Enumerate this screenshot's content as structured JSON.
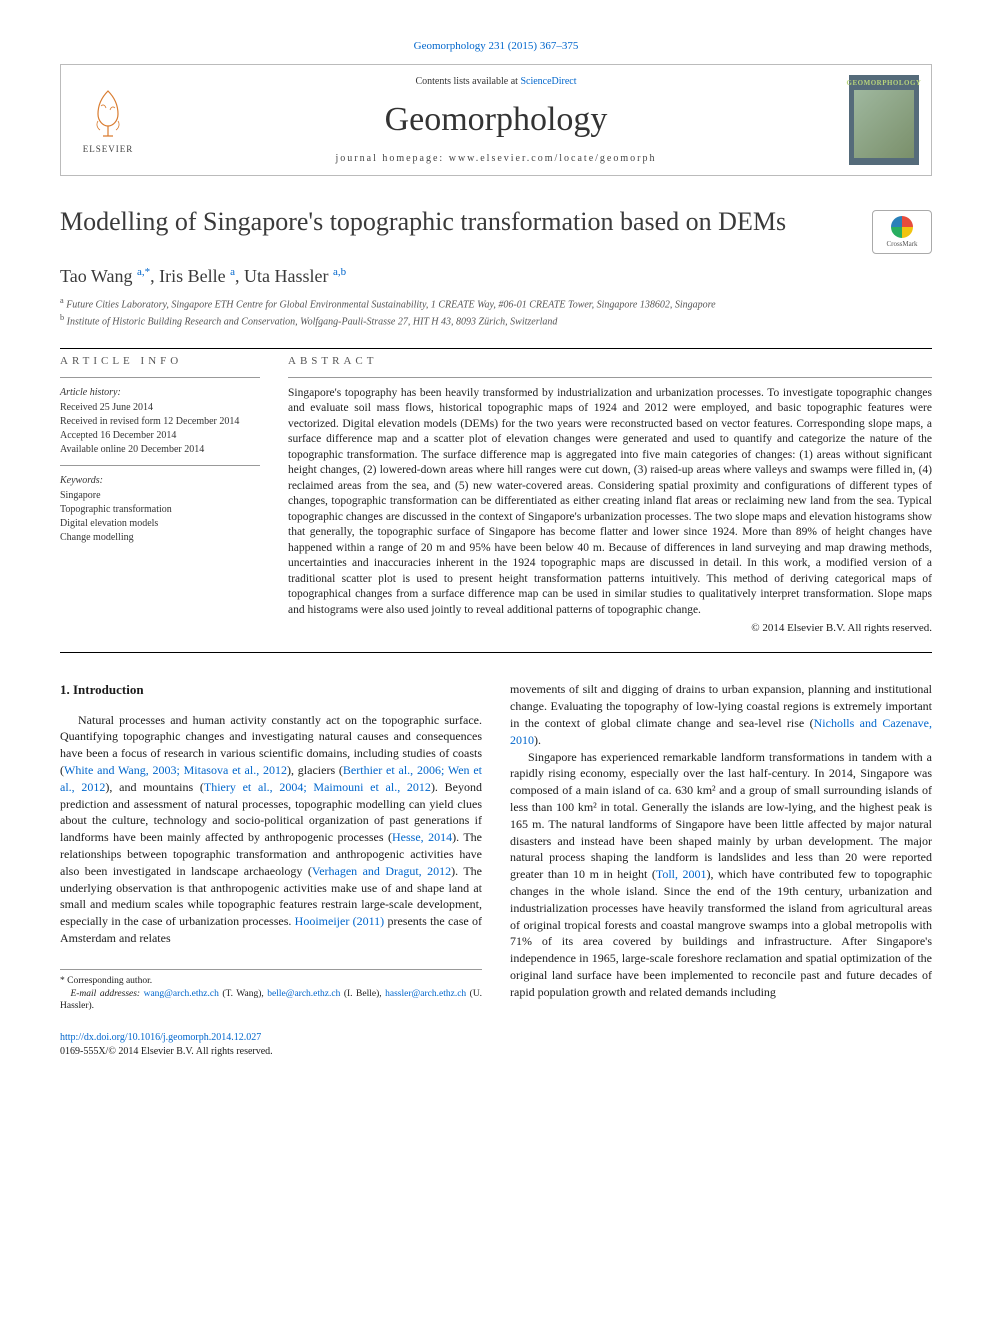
{
  "citation": "Geomorphology 231 (2015) 367–375",
  "masthead": {
    "contents_prefix": "Contents lists available at ",
    "contents_link": "ScienceDirect",
    "journal": "Geomorphology",
    "homepage_prefix": "journal homepage: ",
    "homepage_url": "www.elsevier.com/locate/geomorph",
    "publisher": "ELSEVIER",
    "cover_label": "GEOMORPHOLOGY"
  },
  "crossmark": "CrossMark",
  "title": "Modelling of Singapore's topographic transformation based on DEMs",
  "authors_html": "Tao Wang <sup>a,*</sup>, Iris Belle <sup>a</sup>, Uta Hassler <sup>a,b</sup>",
  "affiliations": {
    "a": "Future Cities Laboratory, Singapore ETH Centre for Global Environmental Sustainability, 1 CREATE Way, #06-01 CREATE Tower, Singapore 138602, Singapore",
    "b": "Institute of Historic Building Research and Conservation, Wolfgang-Pauli-Strasse 27, HIT H 43, 8093 Zürich, Switzerland"
  },
  "article_info": {
    "label": "article info",
    "history_heading": "Article history:",
    "received": "Received 25 June 2014",
    "revised": "Received in revised form 12 December 2014",
    "accepted": "Accepted 16 December 2014",
    "online": "Available online 20 December 2014",
    "keywords_heading": "Keywords:",
    "keywords": [
      "Singapore",
      "Topographic transformation",
      "Digital elevation models",
      "Change modelling"
    ]
  },
  "abstract": {
    "label": "abstract",
    "text": "Singapore's topography has been heavily transformed by industrialization and urbanization processes. To investigate topographic changes and evaluate soil mass flows, historical topographic maps of 1924 and 2012 were employed, and basic topographic features were vectorized. Digital elevation models (DEMs) for the two years were reconstructed based on vector features. Corresponding slope maps, a surface difference map and a scatter plot of elevation changes were generated and used to quantify and categorize the nature of the topographic transformation. The surface difference map is aggregated into five main categories of changes: (1) areas without significant height changes, (2) lowered-down areas where hill ranges were cut down, (3) raised-up areas where valleys and swamps were filled in, (4) reclaimed areas from the sea, and (5) new water-covered areas. Considering spatial proximity and configurations of different types of changes, topographic transformation can be differentiated as either creating inland flat areas or reclaiming new land from the sea. Typical topographic changes are discussed in the context of Singapore's urbanization processes. The two slope maps and elevation histograms show that generally, the topographic surface of Singapore has become flatter and lower since 1924. More than 89% of height changes have happened within a range of 20 m and 95% have been below 40 m. Because of differences in land surveying and map drawing methods, uncertainties and inaccuracies inherent in the 1924 topographic maps are discussed in detail. In this work, a modified version of a traditional scatter plot is used to present height transformation patterns intuitively. This method of deriving categorical maps of topographical changes from a surface difference map can be used in similar studies to qualitatively interpret transformation. Slope maps and histograms were also used jointly to reveal additional patterns of topographic change.",
    "copyright": "© 2014 Elsevier B.V. All rights reserved."
  },
  "body": {
    "section_number": "1.",
    "section_title": "Introduction",
    "left_p1_a": "Natural processes and human activity constantly act on the topographic surface. Quantifying topographic changes and investigating natural causes and consequences have been a focus of research in various scientific domains, including studies of coasts (",
    "cite1": "White and Wang, 2003; Mitasova et al., 2012",
    "left_p1_b": "), glaciers (",
    "cite2": "Berthier et al., 2006; Wen et al., 2012",
    "left_p1_c": "), and mountains (",
    "cite3": "Thiery et al., 2004; Maimouni et al., 2012",
    "left_p1_d": "). Beyond prediction and assessment of natural processes, topographic modelling can yield clues about the culture, technology and socio-political organization of past generations if landforms have been mainly affected by anthropogenic processes (",
    "cite4": "Hesse, 2014",
    "left_p1_e": "). The relationships between topographic transformation and anthropogenic activities have also been investigated in landscape archaeology (",
    "cite5": "Verhagen and Dragut, 2012",
    "left_p1_f": "). The underlying observation is that anthropogenic activities make use of and shape land at small and medium scales while topographic features restrain large-scale development, especially in the case of urbanization processes. ",
    "cite6": "Hooimeijer (2011)",
    "left_p1_g": " presents the case of Amsterdam and relates",
    "right_p1_a": "movements of silt and digging of drains to urban expansion, planning and institutional change. Evaluating the topography of low-lying coastal regions is extremely important in the context of global climate change and sea-level rise (",
    "cite7": "Nicholls and Cazenave, 2010",
    "right_p1_b": ").",
    "right_p2_a": "Singapore has experienced remarkable landform transformations in tandem with a rapidly rising economy, especially over the last half-century. In 2014, Singapore was composed of a main island of ca. 630 km² and a group of small surrounding islands of less than 100 km² in total. Generally the islands are low-lying, and the highest peak is 165 m. The natural landforms of Singapore have been little affected by major natural disasters and instead have been shaped mainly by urban development. The major natural process shaping the landform is landslides and less than 20 were reported greater than 10 m in height (",
    "cite8": "Toll, 2001",
    "right_p2_b": "), which have contributed few to topographic changes in the whole island. Since the end of the 19th century, urbanization and industrialization processes have heavily transformed the island from agricultural areas of original tropical forests and coastal mangrove swamps into a global metropolis with 71% of its area covered by buildings and infrastructure. After Singapore's independence in 1965, large-scale foreshore reclamation and spatial optimization of the original land surface have been implemented to reconcile past and future decades of rapid population growth and related demands including"
  },
  "footnotes": {
    "corr": "Corresponding author.",
    "email_label": "E-mail addresses:",
    "email1": "wang@arch.ethz.ch",
    "name1": "(T. Wang),",
    "email2": "belle@arch.ethz.ch",
    "name2": "(I. Belle),",
    "email3": "hassler@arch.ethz.ch",
    "name3": "(U. Hassler)."
  },
  "footer": {
    "doi": "http://dx.doi.org/10.1016/j.geomorph.2014.12.027",
    "issn_line": "0169-555X/© 2014 Elsevier B.V. All rights reserved."
  },
  "colors": {
    "link": "#0066cc",
    "text": "#1a1a1a",
    "muted": "#555",
    "border": "#bbb"
  }
}
